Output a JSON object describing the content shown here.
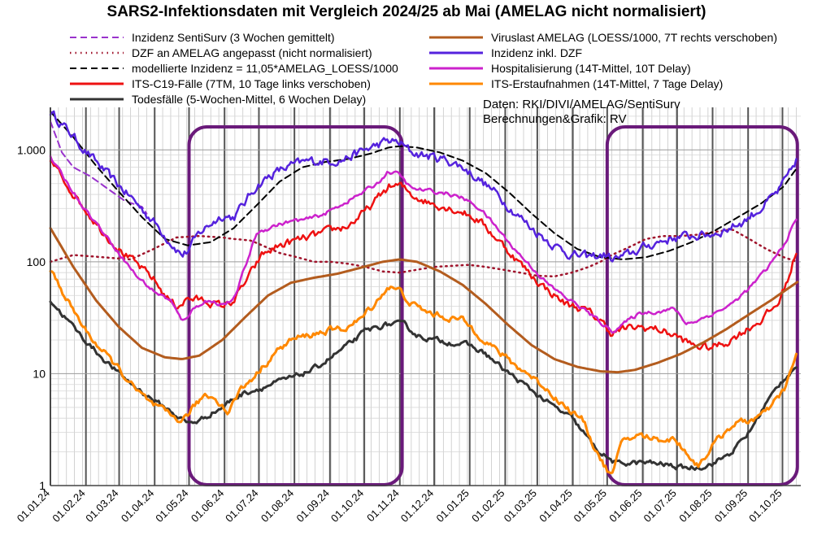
{
  "chart_data": {
    "type": "line",
    "title": "SARS2-Infektionsdaten mit Vergleich 2024/25 ab Mai (AMELAG nicht normalisiert)",
    "yscale": "log",
    "ylim": [
      1,
      2400
    ],
    "xlim_days": [
      0,
      655
    ],
    "y_ticks": [
      {
        "value": 1,
        "label": "1"
      },
      {
        "value": 10,
        "label": "10"
      },
      {
        "value": 100,
        "label": "100"
      },
      {
        "value": 1000,
        "label": "1.000"
      }
    ],
    "x_ticks": [
      {
        "day": 0,
        "label": "01.01.24"
      },
      {
        "day": 31,
        "label": "01.02.24"
      },
      {
        "day": 60,
        "label": "01.03.24"
      },
      {
        "day": 91,
        "label": "01.04.24"
      },
      {
        "day": 121,
        "label": "01.05.24"
      },
      {
        "day": 152,
        "label": "01.06.24"
      },
      {
        "day": 182,
        "label": "01.07.24"
      },
      {
        "day": 213,
        "label": "01.08.24"
      },
      {
        "day": 244,
        "label": "01.09.24"
      },
      {
        "day": 274,
        "label": "01.10.24"
      },
      {
        "day": 305,
        "label": "01.11.24"
      },
      {
        "day": 335,
        "label": "01.12.24"
      },
      {
        "day": 366,
        "label": "01.01.25"
      },
      {
        "day": 397,
        "label": "01.02.25"
      },
      {
        "day": 425,
        "label": "01.03.25"
      },
      {
        "day": 456,
        "label": "01.04.25"
      },
      {
        "day": 486,
        "label": "01.05.25"
      },
      {
        "day": 517,
        "label": "01.06.25"
      },
      {
        "day": 547,
        "label": "01.07.25"
      },
      {
        "day": 578,
        "label": "01.08.25"
      },
      {
        "day": 609,
        "label": "01.09.25"
      },
      {
        "day": 639,
        "label": "01.10.25"
      }
    ],
    "highlight_ranges": [
      {
        "from_day": 121,
        "to_day": 307
      },
      {
        "from_day": 486,
        "to_day": 652
      }
    ],
    "series": [
      {
        "name": "Inzidenz SentiSurv (3 Wochen gemittelt)",
        "color": "#9933cc",
        "dash": "dashed",
        "width": 2,
        "x": [
          0,
          10,
          20,
          35,
          50,
          65,
          80,
          85
        ],
        "y": [
          1800,
          950,
          700,
          580,
          450,
          350,
          310,
          260
        ]
      },
      {
        "name": "DZF an AMELAG angepasst (nicht normalisiert)",
        "color": "#a0142c",
        "dash": "dotted",
        "width": 2.5,
        "x": [
          0,
          20,
          45,
          70,
          90,
          110,
          130,
          150,
          160,
          175,
          185,
          200,
          215,
          230,
          245,
          260,
          275,
          290,
          305,
          320,
          335,
          350,
          365,
          380,
          395,
          410,
          425,
          440,
          455,
          470,
          480,
          490,
          505,
          520,
          535,
          550,
          565,
          580,
          595,
          610,
          625,
          640,
          652
        ],
        "y": [
          100,
          115,
          110,
          105,
          130,
          165,
          170,
          165,
          160,
          155,
          140,
          120,
          110,
          100,
          100,
          96,
          90,
          82,
          80,
          85,
          90,
          92,
          94,
          90,
          85,
          80,
          75,
          74,
          80,
          90,
          100,
          115,
          135,
          160,
          170,
          170,
          175,
          185,
          195,
          160,
          130,
          110,
          100
        ]
      },
      {
        "name": "modellierte Inzidenz = 11,05*AMELAG_LOESS/1000",
        "color": "#000000",
        "dash": "dashed",
        "width": 2,
        "x": [
          0,
          20,
          40,
          60,
          80,
          100,
          120,
          140,
          160,
          180,
          200,
          220,
          240,
          260,
          280,
          295,
          305,
          320,
          340,
          360,
          380,
          400,
          420,
          440,
          460,
          480,
          500,
          520,
          540,
          560,
          580,
          600,
          620,
          640,
          652
        ],
        "y": [
          2200,
          1300,
          720,
          420,
          250,
          160,
          140,
          150,
          200,
          320,
          520,
          700,
          780,
          830,
          930,
          1050,
          1080,
          1050,
          950,
          800,
          620,
          420,
          270,
          180,
          130,
          110,
          105,
          110,
          125,
          150,
          190,
          250,
          330,
          470,
          700
        ]
      },
      {
        "name": "Inzidenz inkl. DZF",
        "color": "#5522dd",
        "dash": "solid",
        "width": 2.5,
        "noise": 0.14,
        "x": [
          0,
          15,
          30,
          50,
          70,
          90,
          105,
          115,
          120,
          130,
          140,
          150,
          160,
          170,
          180,
          195,
          210,
          225,
          240,
          255,
          270,
          285,
          295,
          305,
          315,
          330,
          345,
          360,
          375,
          390,
          405,
          420,
          440,
          455,
          470,
          485,
          490,
          500,
          515,
          530,
          545,
          560,
          575,
          590,
          605,
          620,
          635,
          645,
          652
        ],
        "y": [
          2200,
          1500,
          1000,
          600,
          380,
          230,
          150,
          115,
          125,
          180,
          220,
          260,
          250,
          340,
          480,
          620,
          720,
          790,
          800,
          820,
          950,
          1100,
          1200,
          1150,
          950,
          880,
          820,
          700,
          540,
          400,
          280,
          200,
          140,
          115,
          110,
          115,
          105,
          110,
          130,
          150,
          165,
          170,
          175,
          195,
          230,
          300,
          420,
          600,
          850
        ]
      },
      {
        "name": "ITS-C19-Fälle (7TM, 10 Tage links verschoben)",
        "color": "#ee1111",
        "dash": "solid",
        "width": 2.5,
        "noise": 0.12,
        "x": [
          0,
          15,
          30,
          45,
          60,
          75,
          90,
          100,
          110,
          120,
          135,
          150,
          160,
          170,
          185,
          200,
          215,
          230,
          245,
          260,
          275,
          285,
          295,
          305,
          315,
          330,
          345,
          360,
          375,
          390,
          405,
          420,
          435,
          450,
          465,
          480,
          490,
          500,
          515,
          530,
          545,
          560,
          575,
          590,
          605,
          620,
          635,
          645,
          652
        ],
        "y": [
          800,
          480,
          300,
          190,
          130,
          95,
          70,
          50,
          40,
          47,
          45,
          40,
          45,
          65,
          115,
          140,
          155,
          170,
          190,
          210,
          280,
          360,
          470,
          480,
          400,
          340,
          310,
          280,
          230,
          160,
          110,
          75,
          55,
          42,
          38,
          30,
          23,
          25,
          26,
          25,
          22,
          18,
          17,
          19,
          24,
          30,
          42,
          75,
          135
        ]
      },
      {
        "name": "Todesfälle (5-Wochen-Mittel, 6 Wochen Delay)",
        "color": "#333333",
        "dash": "solid",
        "width": 3,
        "noise": 0.08,
        "x": [
          0,
          15,
          30,
          45,
          60,
          75,
          90,
          105,
          120,
          130,
          140,
          150,
          160,
          170,
          185,
          200,
          215,
          230,
          245,
          260,
          275,
          290,
          300,
          310,
          320,
          335,
          350,
          365,
          380,
          395,
          410,
          425,
          440,
          455,
          465,
          475,
          485,
          495,
          505,
          520,
          535,
          550,
          565,
          580,
          595,
          610,
          625,
          640,
          652
        ],
        "y": [
          45,
          30,
          20,
          14,
          10,
          7.5,
          5.8,
          4.6,
          3.6,
          3.8,
          4.4,
          5.0,
          6.0,
          6.8,
          7.5,
          8.5,
          9.5,
          11,
          14,
          18,
          24,
          27,
          28,
          27,
          22,
          20,
          19,
          18,
          15,
          11,
          8.5,
          6.5,
          5.0,
          4.0,
          3.0,
          2.2,
          1.8,
          1.55,
          1.6,
          1.6,
          1.55,
          1.45,
          1.45,
          1.6,
          2.0,
          3.0,
          5.5,
          9.0,
          12
        ]
      },
      {
        "name": "Viruslast AMELAG (LOESS/1000, 7T rechts verschoben)",
        "color": "#b35c1e",
        "dash": "solid",
        "width": 3,
        "x": [
          0,
          20,
          40,
          60,
          80,
          100,
          115,
          130,
          150,
          170,
          190,
          210,
          230,
          250,
          270,
          290,
          305,
          320,
          340,
          360,
          380,
          400,
          420,
          440,
          460,
          480,
          495,
          510,
          530,
          550,
          570,
          590,
          610,
          630,
          652
        ],
        "y": [
          200,
          90,
          45,
          26,
          17,
          14,
          13.5,
          14.5,
          20,
          32,
          50,
          65,
          72,
          78,
          88,
          100,
          105,
          100,
          82,
          62,
          42,
          27,
          18,
          13.5,
          11.5,
          10.5,
          10.3,
          10.8,
          12.5,
          15,
          19,
          25,
          34,
          46,
          66
        ]
      },
      {
        "name": "Hospitalisierung (14T-Mittel, 10T Delay)",
        "color": "#cc22cc",
        "dash": "solid",
        "width": 2.5,
        "noise": 0.06,
        "x": [
          0,
          15,
          30,
          45,
          60,
          75,
          90,
          105,
          115,
          125,
          135,
          150,
          160,
          170,
          180,
          195,
          210,
          225,
          240,
          255,
          270,
          285,
          295,
          305,
          315,
          330,
          345,
          360,
          375,
          390,
          405,
          420,
          435,
          450,
          465,
          478,
          490,
          505,
          515,
          530,
          545,
          555,
          565,
          580,
          595,
          610,
          625,
          640,
          652
        ],
        "y": [
          850,
          500,
          300,
          190,
          120,
          75,
          55,
          45,
          29,
          38,
          45,
          42,
          45,
          90,
          180,
          210,
          230,
          240,
          270,
          330,
          400,
          500,
          640,
          600,
          450,
          430,
          410,
          370,
          300,
          200,
          130,
          90,
          62,
          48,
          38,
          30,
          24,
          30,
          35,
          36,
          38,
          28,
          30,
          35,
          42,
          58,
          85,
          140,
          250
        ]
      },
      {
        "name": "ITS-Erstaufnahmen (14T-Mittel, 7 Tage Delay)",
        "color": "#ff8800",
        "dash": "solid",
        "width": 3,
        "noise": 0.1,
        "x": [
          0,
          15,
          30,
          45,
          60,
          75,
          90,
          105,
          115,
          125,
          135,
          145,
          155,
          165,
          180,
          195,
          210,
          225,
          240,
          255,
          270,
          285,
          295,
          305,
          315,
          330,
          345,
          360,
          375,
          390,
          405,
          420,
          435,
          450,
          465,
          475,
          482,
          490,
          500,
          515,
          530,
          545,
          555,
          565,
          580,
          595,
          610,
          625,
          640,
          652
        ],
        "y": [
          85,
          45,
          25,
          16,
          11,
          7,
          5.2,
          4.2,
          3.8,
          5.0,
          6.5,
          6.0,
          4.5,
          7.0,
          10,
          15,
          20,
          22,
          24,
          25,
          30,
          45,
          60,
          55,
          42,
          35,
          32,
          30,
          22,
          16,
          12,
          9.5,
          7.0,
          5.0,
          3.8,
          2.2,
          1.6,
          1.2,
          2.6,
          2.8,
          2.6,
          2.6,
          2.0,
          1.5,
          2.4,
          3.5,
          3.8,
          4.5,
          7.0,
          15
        ]
      }
    ],
    "legend": {
      "placement": "top",
      "entries": [
        {
          "label": "Inzidenz SentiSurv (3 Wochen gemittelt)",
          "color": "#9933cc",
          "dash": "dashed"
        },
        {
          "label": "DZF an AMELAG angepasst (nicht normalisiert)",
          "color": "#a0142c",
          "dash": "dotted"
        },
        {
          "label": "modellierte Inzidenz = 11,05*AMELAG_LOESS/1000",
          "color": "#000000",
          "dash": "dashed"
        },
        {
          "label": "ITS-C19-Fälle (7TM, 10 Tage links verschoben)",
          "color": "#ee1111",
          "dash": "solid"
        },
        {
          "label": "Todesfälle (5-Wochen-Mittel, 6 Wochen Delay)",
          "color": "#333333",
          "dash": "solid"
        },
        {
          "label": "Viruslast AMELAG (LOESS/1000, 7T rechts verschoben)",
          "color": "#b35c1e",
          "dash": "solid"
        },
        {
          "label": "Inzidenz inkl. DZF",
          "color": "#5522dd",
          "dash": "solid"
        },
        {
          "label": "Hospitalisierung (14T-Mittel, 10T Delay)",
          "color": "#cc22cc",
          "dash": "solid"
        },
        {
          "label": "ITS-Erstaufnahmen (14T-Mittel, 7 Tage Delay)",
          "color": "#ff8800",
          "dash": "solid"
        }
      ]
    },
    "source_lines": [
      "Daten: RKI/DIVI/AMELAG/SentiSurv",
      "Berechnungen&Grafik: RV"
    ],
    "highlight_color": "#6a1a7a"
  }
}
